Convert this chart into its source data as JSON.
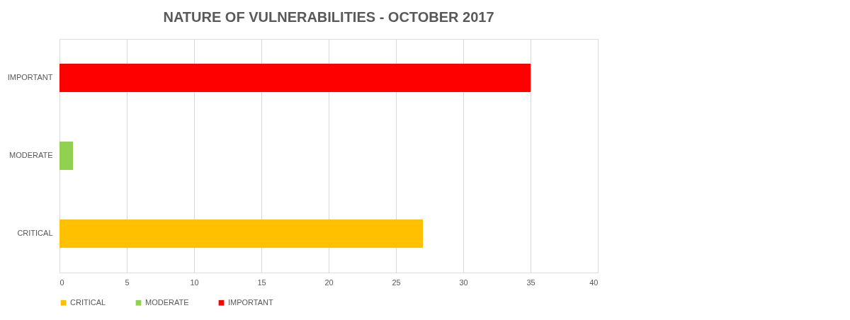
{
  "chart_data": {
    "type": "bar",
    "orientation": "horizontal",
    "title": "NATURE OF VULNERABILITIES - OCTOBER 2017",
    "categories": [
      "IMPORTANT",
      "MODERATE",
      "CRITICAL"
    ],
    "series": [
      {
        "name": "CRITICAL",
        "color": "#ffc000",
        "values": [
          null,
          null,
          27
        ]
      },
      {
        "name": "MODERATE",
        "color": "#92d050",
        "values": [
          null,
          1,
          null
        ]
      },
      {
        "name": "IMPORTANT",
        "color": "#ff0000",
        "values": [
          35,
          null,
          null
        ]
      }
    ],
    "xlim": [
      0,
      40
    ],
    "xticks": [
      0,
      5,
      10,
      15,
      20,
      25,
      30,
      35,
      40
    ],
    "grid": "x",
    "legend": "bottom"
  }
}
